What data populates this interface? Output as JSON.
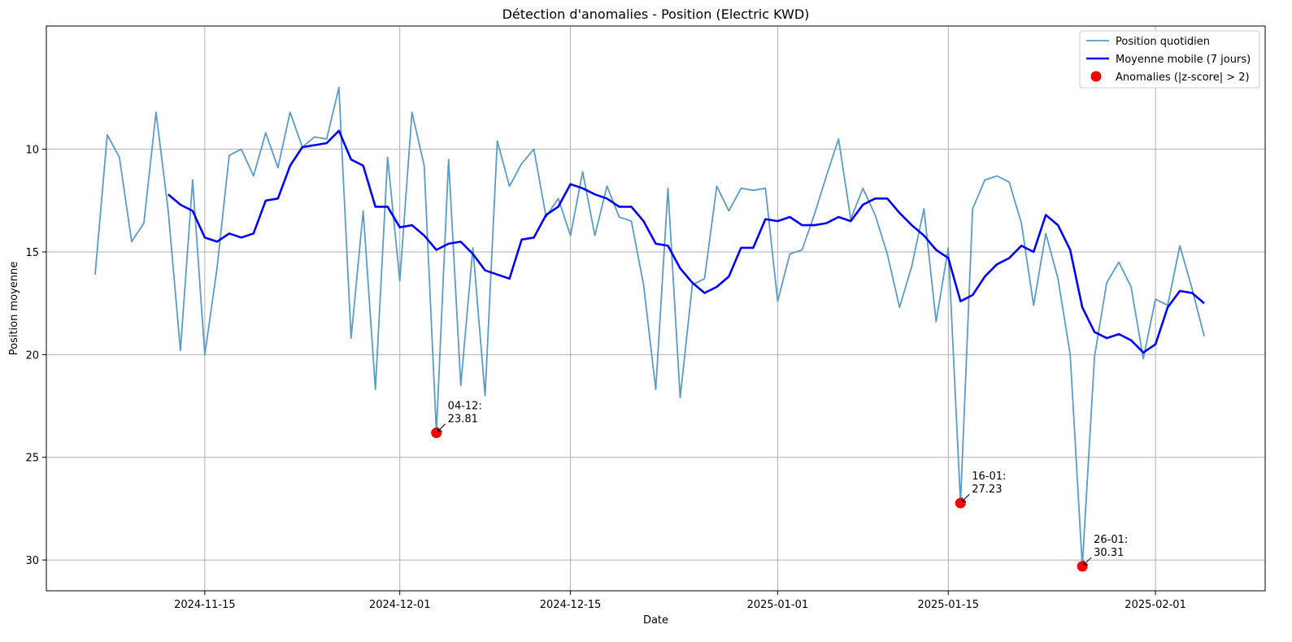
{
  "chart_data": {
    "type": "line",
    "title": "Détection d'anomalies - Position (Electric KWD)",
    "xlabel": "Date",
    "ylabel": "Position moyenne",
    "y_inverted": true,
    "ylim": [
      31.5,
      4.0
    ],
    "xlim": [
      "2024-11-02",
      "2025-02-10"
    ],
    "grid": true,
    "legend_position": "top-right",
    "x_ticks": [
      "2024-11-15",
      "2024-12-01",
      "2024-12-15",
      "2025-01-01",
      "2025-01-15",
      "2025-02-01"
    ],
    "y_ticks": [
      10,
      15,
      20,
      25,
      30
    ],
    "legend": [
      {
        "label": "Position quotidien",
        "kind": "line",
        "color": "#5b9bc8"
      },
      {
        "label": "Moyenne mobile (7 jours)",
        "kind": "line",
        "color": "#0000ff"
      },
      {
        "label": "Anomalies (|z-score| > 2)",
        "kind": "marker",
        "color": "#ff0000"
      }
    ],
    "series": [
      {
        "name": "Position quotidien",
        "color": "#5b9bc8",
        "start_date": "2024-11-06",
        "values": [
          16.1,
          9.3,
          10.4,
          14.5,
          13.6,
          8.2,
          13.0,
          19.8,
          11.5,
          20.0,
          15.8,
          10.3,
          10.0,
          11.3,
          9.2,
          10.9,
          8.2,
          9.9,
          9.4,
          9.5,
          7.0,
          19.2,
          13.0,
          21.7,
          10.4,
          16.4,
          8.2,
          10.8,
          23.81,
          10.5,
          21.5,
          14.8,
          22.0,
          9.6,
          11.8,
          10.7,
          10.0,
          13.3,
          12.4,
          14.2,
          11.1,
          14.2,
          11.8,
          13.3,
          13.5,
          16.6,
          21.7,
          11.9,
          22.1,
          16.6,
          16.3,
          11.8,
          13.0,
          11.9,
          12.0,
          11.9,
          17.4,
          15.1,
          14.9,
          13.2,
          11.3,
          9.5,
          13.4,
          11.9,
          13.2,
          15.1,
          17.7,
          15.7,
          12.9,
          18.4,
          14.8,
          27.23,
          12.9,
          11.5,
          11.3,
          11.6,
          13.6,
          17.6,
          14.1,
          16.3,
          20.0,
          30.31,
          20.1,
          16.5,
          15.5,
          16.7,
          20.2,
          17.3,
          17.6,
          14.7,
          16.8,
          19.1
        ]
      },
      {
        "name": "Moyenne mobile (7 jours)",
        "color": "#0000ff",
        "start_date": "2024-11-12",
        "values": [
          12.2,
          12.7,
          13.0,
          14.3,
          14.5,
          14.1,
          14.3,
          14.1,
          12.5,
          12.4,
          10.8,
          9.9,
          9.8,
          9.7,
          9.1,
          10.5,
          10.8,
          12.8,
          12.8,
          13.8,
          13.7,
          14.2,
          14.9,
          14.6,
          14.5,
          15.1,
          15.9,
          16.1,
          16.3,
          14.4,
          14.3,
          13.2,
          12.8,
          11.7,
          11.9,
          12.2,
          12.4,
          12.8,
          12.8,
          13.5,
          14.6,
          14.7,
          15.8,
          16.5,
          17.0,
          16.7,
          16.2,
          14.8,
          14.8,
          13.4,
          13.5,
          13.3,
          13.7,
          13.7,
          13.6,
          13.3,
          13.5,
          12.7,
          12.4,
          12.4,
          13.1,
          13.7,
          14.2,
          14.9,
          15.3,
          17.4,
          17.1,
          16.2,
          15.6,
          15.3,
          14.7,
          15.0,
          13.2,
          13.7,
          14.9,
          17.7,
          18.9,
          19.2,
          19.0,
          19.3,
          19.9,
          19.5,
          17.7,
          16.9,
          17.0,
          17.5
        ]
      }
    ],
    "anomalies": [
      {
        "date": "2024-12-04",
        "value": 23.81,
        "label": "04-12:",
        "value_label": "23.81"
      },
      {
        "date": "2025-01-16",
        "value": 27.23,
        "label": "16-01:",
        "value_label": "27.23"
      },
      {
        "date": "2025-01-26",
        "value": 30.31,
        "label": "26-01:",
        "value_label": "30.31"
      }
    ]
  }
}
